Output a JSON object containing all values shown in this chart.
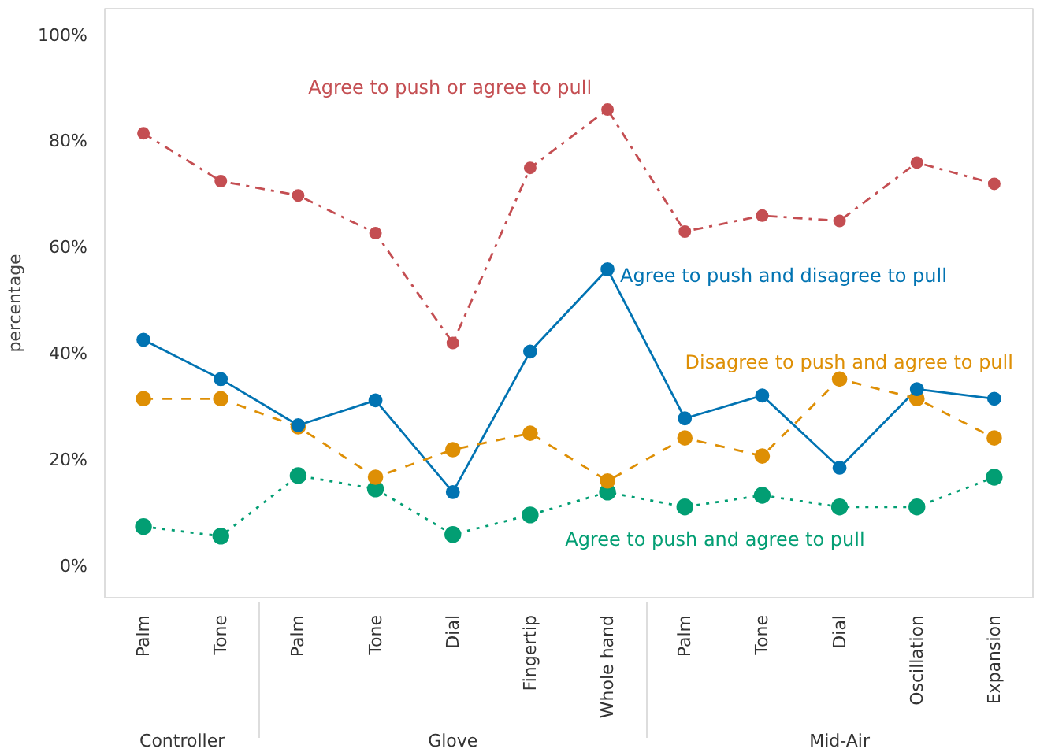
{
  "chart_data": {
    "type": "line",
    "ylabel": "percentage",
    "categories": [
      "Palm",
      "Tone",
      "Palm",
      "Tone",
      "Dial",
      "Fingertip",
      "Whole hand",
      "Palm",
      "Tone",
      "Dial",
      "Oscillation",
      "Expansion"
    ],
    "annotations": [
      "Controller",
      "Glove",
      "Mid-Air"
    ],
    "ylim": [
      -6,
      105
    ],
    "yticks": [
      {
        "value": 0,
        "label": "0%"
      },
      {
        "value": 20,
        "label": "20%"
      },
      {
        "value": 40,
        "label": "40%"
      },
      {
        "value": 60,
        "label": "60%"
      },
      {
        "value": 80,
        "label": "80%"
      },
      {
        "value": 100,
        "label": "100%"
      }
    ],
    "grid": false,
    "legend": false,
    "marker": "circle",
    "series": [
      {
        "name": "Agree to push or agree to pull",
        "color": "#c44e52",
        "line_style": "dashdot",
        "values": [
          81.5,
          72.5,
          69.8,
          62.7,
          42,
          75,
          86,
          63,
          66,
          65,
          76,
          72
        ]
      },
      {
        "name": "Agree to push and disagree to pull",
        "color": "#0173b2",
        "line_style": "solid",
        "values": [
          42.6,
          35.2,
          26.5,
          31.2,
          13.9,
          40.4,
          55.9,
          27.8,
          32.1,
          18.5,
          33.3,
          31.5
        ]
      },
      {
        "name": "Disagree to push and agree to pull",
        "color": "#de8f05",
        "line_style": "dashed",
        "values": [
          31.5,
          31.5,
          26.2,
          16.7,
          21.9,
          25,
          16,
          24.1,
          20.7,
          35.2,
          31.5,
          24.1
        ]
      },
      {
        "name": "Agree to push and agree to pull",
        "color": "#029e73",
        "line_style": "dotted",
        "values": [
          7.4,
          5.6,
          17,
          14.5,
          5.9,
          9.6,
          13.9,
          11.1,
          13.3,
          11.1,
          11.1,
          16.7
        ]
      }
    ]
  }
}
